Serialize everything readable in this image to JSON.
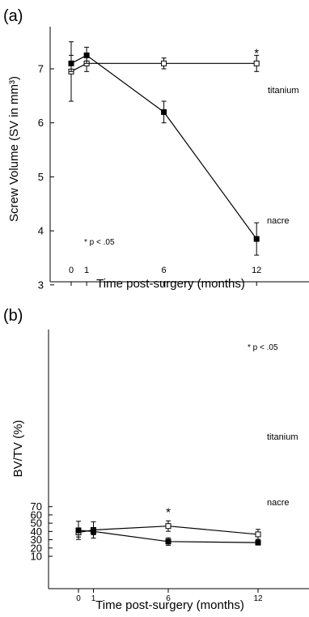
{
  "chart_data": [
    {
      "type": "line",
      "panel": "(a)",
      "xlabel": "Time post-surgery (months)",
      "ylabel": "Screw Volume (SV in mm³)",
      "xticks": [
        "0",
        "1",
        "6",
        "12"
      ],
      "yticks": [
        "3",
        "4",
        "5",
        "6",
        "7"
      ],
      "xlim": [
        -0.6,
        14
      ],
      "ylim": [
        2.3,
        7.6
      ],
      "grid": false,
      "significance_note": "* p < .05",
      "significance_marks": [
        {
          "x": 12,
          "label": "*"
        }
      ],
      "series": [
        {
          "name": "titanium",
          "marker": "open-square",
          "x": [
            0,
            1,
            6,
            12
          ],
          "y": [
            6.95,
            7.1,
            7.1,
            7.1
          ],
          "err": [
            0.55,
            0.15,
            0.1,
            0.15
          ]
        },
        {
          "name": "nacre",
          "marker": "filled-square",
          "x": [
            0,
            1,
            6,
            12
          ],
          "y": [
            7.1,
            7.25,
            6.2,
            3.85
          ],
          "err": [
            0.15,
            0.15,
            0.2,
            0.3
          ]
        }
      ]
    },
    {
      "type": "line",
      "panel": "(b)",
      "xlabel": "Time post-surgery (months)",
      "ylabel": "BV/TV  (%)",
      "xticks": [
        "0",
        "1",
        "6",
        "12"
      ],
      "yticks": [
        "10",
        "20",
        "30",
        "40",
        "50",
        "60",
        "70"
      ],
      "xlim": [
        -1.6,
        14
      ],
      "ylim": [
        5,
        76
      ],
      "grid": false,
      "significance_note": "* p < .05",
      "significance_marks": [
        {
          "x": 6,
          "label": "*"
        }
      ],
      "series": [
        {
          "name": "titanium",
          "marker": "open-square",
          "x": [
            0,
            1,
            6,
            12
          ],
          "y": [
            38.8,
            41.8,
            46.5,
            36.5
          ],
          "err": [
            5.5,
            9.8,
            6.3,
            6.0
          ]
        },
        {
          "name": "nacre",
          "marker": "filled-square",
          "x": [
            0,
            1,
            6,
            12
          ],
          "y": [
            41.3,
            40.0,
            27.8,
            26.5
          ],
          "err": [
            11.0,
            4.0,
            4.5,
            2.0
          ]
        }
      ]
    }
  ]
}
